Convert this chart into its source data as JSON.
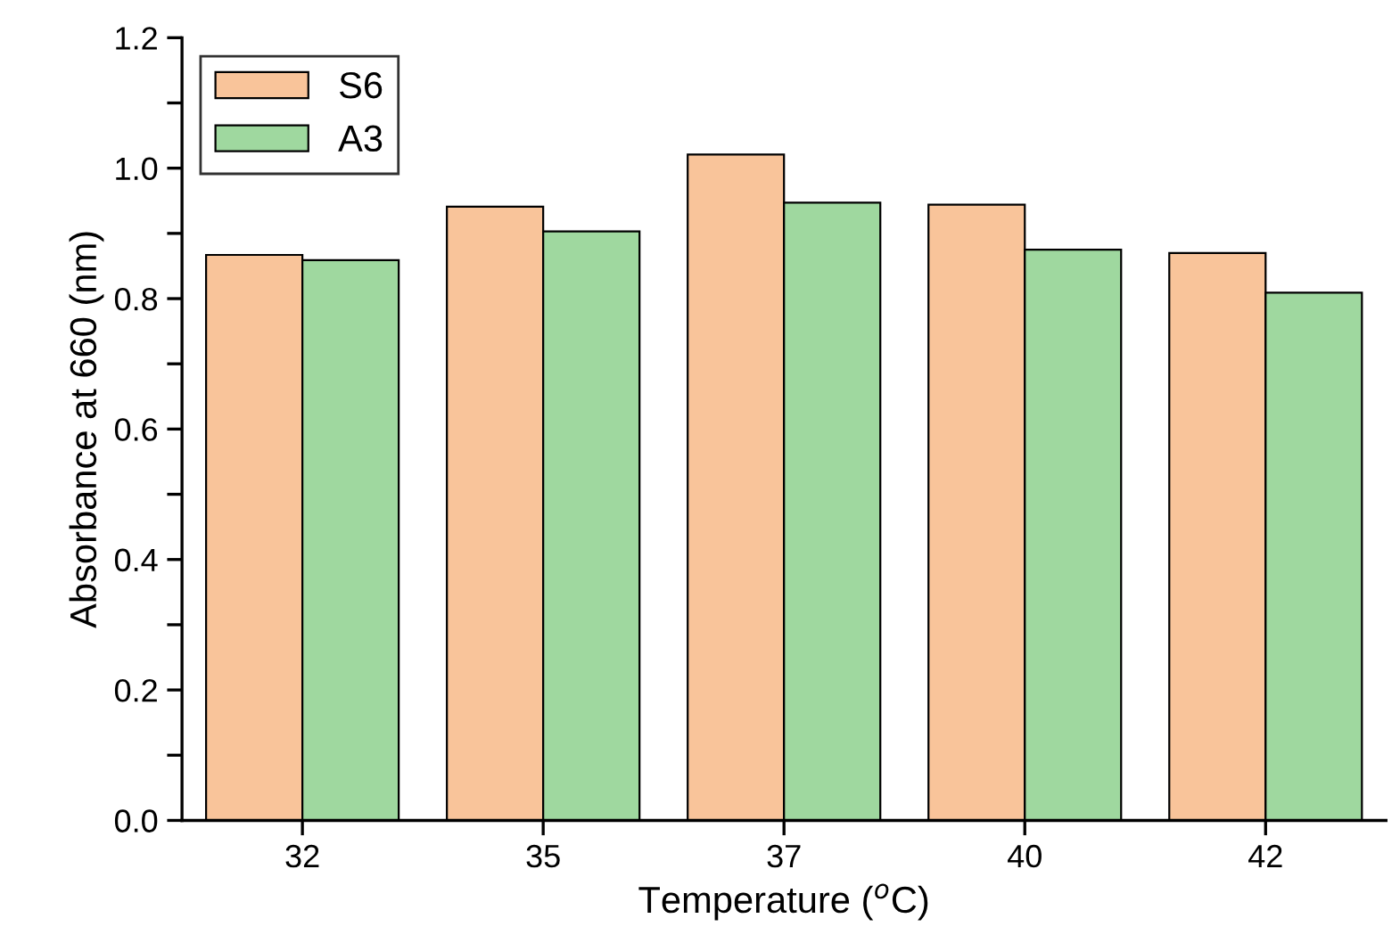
{
  "chart_data": {
    "type": "bar",
    "xlabel": "Temperature ($^{o}$C)",
    "ylabel": "Absorbance at 660 (nm)",
    "categories": [
      "32",
      "35",
      "37",
      "40",
      "42"
    ],
    "series": [
      {
        "name": "S6",
        "color": "#f9c49a",
        "values": [
          0.867,
          0.941,
          1.021,
          0.944,
          0.87
        ]
      },
      {
        "name": "A3",
        "color": "#9fd89f",
        "values": [
          0.859,
          0.903,
          0.947,
          0.875,
          0.809
        ]
      }
    ],
    "ylim": [
      0,
      1.2
    ],
    "yticks": [
      {
        "value": 0,
        "label": "0.0"
      },
      {
        "value": 0.1,
        "label": null
      },
      {
        "value": 0.2,
        "label": "0.2"
      },
      {
        "value": 0.3,
        "label": null
      },
      {
        "value": 0.4,
        "label": "0.4"
      },
      {
        "value": 0.5,
        "label": null
      },
      {
        "value": 0.6,
        "label": "0.6"
      },
      {
        "value": 0.7,
        "label": null
      },
      {
        "value": 0.8,
        "label": "0.8"
      },
      {
        "value": 0.9,
        "label": null
      },
      {
        "value": 1.0,
        "label": "1.0"
      },
      {
        "value": 1.1,
        "label": null
      },
      {
        "value": 1.2,
        "label": "1.2"
      }
    ],
    "grid": false,
    "legend": "top left"
  }
}
